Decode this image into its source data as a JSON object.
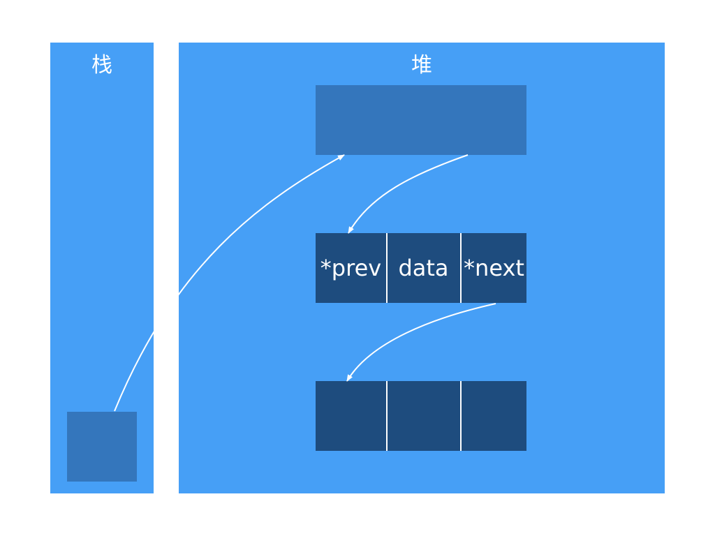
{
  "stack": {
    "title": "栈"
  },
  "heap": {
    "title": "堆"
  },
  "node_fields": {
    "prev": "*prev",
    "data": "data",
    "next": "*next"
  },
  "colors": {
    "panel": "#469ff6",
    "block_mid": "#3476bc",
    "block_dark": "#1e4c7e",
    "arrow": "#ffffff"
  }
}
